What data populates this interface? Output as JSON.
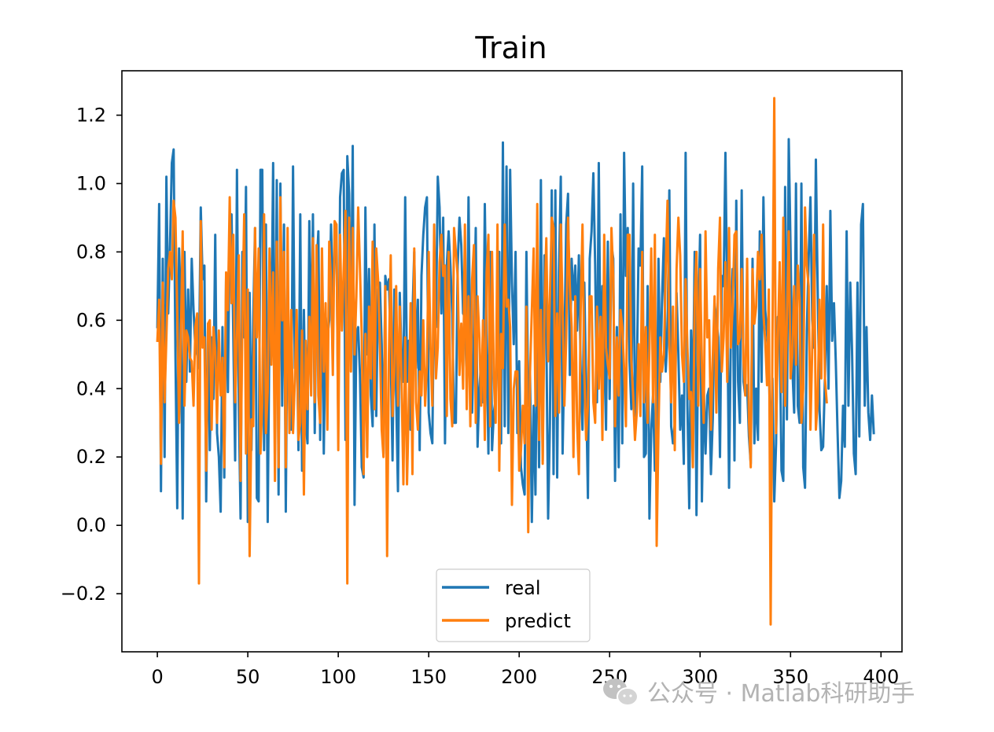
{
  "chart_data": {
    "type": "line",
    "title": "Train",
    "xlabel": "",
    "ylabel": "",
    "xlim": [
      -19.6,
      411.6
    ],
    "ylim": [
      -0.37,
      1.33
    ],
    "xticks": [
      0,
      50,
      100,
      150,
      200,
      250,
      300,
      350,
      400
    ],
    "xtick_labels": [
      "0",
      "50",
      "100",
      "150",
      "200",
      "250",
      "300",
      "350",
      "400"
    ],
    "yticks": [
      -0.2,
      0.0,
      0.2,
      0.4,
      0.6,
      0.8,
      1.0,
      1.2
    ],
    "ytick_labels": [
      "−0.2",
      "0.0",
      "0.2",
      "0.4",
      "0.6",
      "0.8",
      "1.0",
      "1.2"
    ],
    "grid": false,
    "legend_position": "lower center",
    "series": [
      {
        "name": "real",
        "color": "#1f77b4",
        "x_start": 0,
        "x_step": 1,
        "values": [
          0.58,
          0.94,
          0.1,
          0.78,
          0.2,
          1.02,
          0.62,
          0.82,
          1.06,
          1.1,
          0.5,
          0.05,
          0.81,
          0.63,
          0.02,
          0.8,
          0.42,
          0.69,
          0.45,
          0.78,
          0.63,
          0.52,
          0.5,
          0.46,
          0.93,
          0.72,
          0.76,
          0.07,
          0.59,
          0.22,
          0.55,
          0.37,
          0.85,
          0.27,
          0.2,
          0.04,
          0.58,
          0.14,
          0.73,
          0.39,
          0.88,
          0.91,
          0.55,
          0.19,
          1.04,
          0.36,
          0.02,
          0.8,
          0.55,
          0.99,
          0.01,
          0.68,
          0.22,
          0.6,
          0.87,
          0.08,
          0.07,
          1.04,
          1.04,
          0.22,
          0.88,
          0.01,
          0.6,
          0.55,
          1.06,
          0.22,
          1.01,
          0.09,
          1.0,
          0.35,
          0.88,
          0.04,
          0.74,
          0.32,
          0.28,
          1.05,
          0.46,
          0.59,
          0.22,
          0.91,
          0.16,
          0.63,
          0.3,
          0.24,
          0.89,
          0.5,
          0.91,
          0.27,
          0.75,
          0.86,
          0.25,
          0.74,
          0.21,
          0.61,
          0.55,
          0.6,
          0.88,
          0.66,
          0.79,
          0.85,
          0.3,
          0.96,
          1.03,
          1.04,
          0.25,
          1.08,
          0.97,
          0.58,
          1.11,
          0.06,
          0.56,
          0.58,
          0.44,
          0.17,
          0.14,
          0.93,
          0.5,
          0.75,
          0.38,
          0.29,
          0.88,
          0.32,
          0.69,
          0.71,
          0.53,
          0.21,
          0.73,
          0.69,
          0.72,
          0.5,
          0.19,
          0.69,
          0.38,
          0.1,
          0.68,
          0.49,
          0.42,
          0.96,
          0.42,
          0.54,
          0.28,
          0.61,
          0.8,
          0.46,
          0.66,
          0.22,
          0.73,
          0.85,
          0.93,
          0.96,
          0.33,
          0.27,
          0.24,
          0.73,
          0.58,
          1.02,
          0.93,
          0.62,
          0.9,
          0.24,
          0.76,
          0.86,
          0.76,
          0.62,
          0.3,
          0.3,
          0.76,
          0.9,
          0.82,
          0.62,
          0.61,
          0.42,
          0.96,
          0.47,
          0.33,
          0.57,
          0.87,
          0.23,
          0.4,
          0.48,
          0.36,
          0.94,
          0.56,
          0.21,
          0.8,
          0.22,
          0.33,
          0.37,
          0.57,
          0.8,
          0.24,
          1.12,
          0.29,
          1.05,
          0.27,
          1.04,
          0.71,
          0.53,
          0.8,
          0.27,
          0.48,
          0.17,
          0.12,
          0.09,
          0.8,
          0.35,
          0.44,
          0.01,
          0.35,
          0.09,
          0.66,
          0.17,
          1.01,
          0.19,
          0.79,
          0.57,
          0.02,
          0.3,
          0.98,
          0.15,
          0.98,
          0.14,
          0.74,
          1.02,
          0.21,
          0.51,
          0.88,
          0.97,
          0.44,
          0.78,
          0.66,
          0.76,
          0.57,
          0.79,
          0.45,
          0.28,
          0.71,
          0.4,
          0.08,
          0.78,
          0.86,
          1.03,
          0.76,
          0.36,
          1.06,
          0.45,
          0.7,
          0.52,
          0.28,
          0.83,
          0.37,
          0.82,
          0.78,
          0.13,
          0.58,
          0.17,
          0.91,
          0.24,
          1.09,
          0.73,
          0.87,
          0.48,
          0.34,
          1.0,
          0.32,
          0.43,
          0.81,
          0.76,
          1.05,
          0.2,
          0.21,
          0.7,
          0.02,
          0.28,
          0.38,
          0.16,
          0.2,
          0.78,
          0.42,
          0.67,
          0.84,
          0.45,
          0.56,
          0.98,
          0.29,
          0.24,
          0.3,
          0.68,
          0.5,
          0.28,
          0.38,
          0.18,
          1.09,
          0.35,
          0.05,
          0.57,
          0.35,
          0.8,
          0.03,
          0.6,
          0.85,
          0.07,
          0.41,
          0.21,
          0.38,
          0.4,
          0.15,
          0.31,
          0.65,
          0.6,
          0.55,
          0.2,
          0.73,
          0.7,
          1.09,
          0.65,
          0.11,
          0.57,
          0.75,
          0.19,
          0.95,
          0.42,
          0.3,
          0.98,
          0.42,
          0.38,
          0.41,
          0.26,
          0.18,
          0.78,
          0.24,
          0.4,
          0.25,
          0.86,
          0.42,
          0.96,
          0.63,
          0.56,
          0.49,
          0.18,
          0.43,
          0.07,
          0.24,
          0.61,
          0.58,
          0.16,
          0.13,
          0.99,
          0.31,
          1.13,
          0.81,
          0.46,
          0.33,
          1.0,
          0.35,
          0.3,
          1.0,
          0.17,
          0.11,
          0.57,
          0.78,
          0.96,
          0.6,
          0.52,
          1.07,
          0.69,
          0.34,
          0.22,
          0.23,
          0.43,
          0.7,
          0.4,
          0.92,
          0.54,
          0.65,
          0.48,
          0.27,
          0.08,
          0.13,
          0.35,
          0.23,
          0.86,
          0.35,
          0.71,
          0.51,
          0.21,
          0.15,
          0.71,
          0.26,
          0.88,
          0.94,
          0.35,
          0.58,
          0.33,
          0.25,
          0.38,
          0.27
        ]
      },
      {
        "name": "predict",
        "color": "#ff7f0e",
        "x_start": 0,
        "x_step": 1,
        "values": [
          0.54,
          0.66,
          0.18,
          0.71,
          0.36,
          0.55,
          0.75,
          0.8,
          0.72,
          0.95,
          0.9,
          0.62,
          0.3,
          0.55,
          0.86,
          0.35,
          0.57,
          0.55,
          0.49,
          0.48,
          0.35,
          0.58,
          0.62,
          -0.17,
          0.89,
          0.52,
          0.55,
          0.16,
          0.59,
          0.6,
          0.28,
          0.58,
          0.51,
          0.3,
          0.57,
          0.38,
          0.49,
          0.17,
          0.74,
          0.63,
          0.96,
          0.65,
          0.85,
          0.36,
          0.55,
          0.79,
          0.13,
          0.6,
          0.91,
          0.21,
          0.69,
          -0.09,
          0.31,
          0.29,
          0.87,
          0.55,
          0.81,
          0.21,
          0.36,
          0.91,
          0.27,
          0.39,
          0.81,
          0.47,
          0.74,
          0.13,
          0.83,
          0.17,
          0.96,
          0.6,
          0.8,
          0.17,
          0.87,
          0.27,
          0.63,
          0.27,
          0.42,
          0.63,
          0.25,
          0.3,
          0.57,
          0.09,
          0.54,
          0.34,
          0.61,
          0.38,
          0.84,
          0.36,
          0.82,
          0.38,
          0.3,
          0.81,
          0.45,
          0.65,
          0.28,
          0.83,
          0.72,
          0.44,
          0.89,
          0.88,
          0.22,
          0.85,
          0.57,
          0.75,
          0.92,
          -0.17,
          0.9,
          0.45,
          0.87,
          0.5,
          0.67,
          0.93,
          0.75,
          0.55,
          0.15,
          0.56,
          0.2,
          0.64,
          0.43,
          0.83,
          0.34,
          0.81,
          0.72,
          0.53,
          0.28,
          0.2,
          0.7,
          -0.09,
          0.5,
          0.79,
          0.32,
          0.45,
          0.7,
          0.35,
          0.64,
          0.42,
          0.12,
          0.55,
          0.12,
          0.36,
          0.65,
          0.15,
          0.81,
          0.36,
          0.28,
          0.45,
          0.38,
          0.6,
          0.35,
          0.47,
          0.8,
          0.52,
          0.35,
          0.88,
          0.43,
          0.52,
          0.77,
          0.85,
          0.73,
          0.76,
          0.32,
          0.8,
          0.37,
          0.29,
          0.87,
          0.8,
          0.73,
          0.44,
          0.59,
          0.4,
          0.88,
          0.34,
          0.67,
          0.29,
          0.72,
          0.82,
          0.3,
          0.67,
          0.55,
          0.35,
          0.6,
          0.25,
          0.74,
          0.85,
          0.29,
          0.8,
          0.43,
          0.3,
          0.88,
          0.16,
          0.56,
          0.46,
          0.88,
          0.64,
          0.66,
          0.58,
          0.06,
          0.4,
          0.45,
          0.45,
          0.16,
          0.22,
          0.35,
          0.24,
          0.64,
          -0.02,
          0.45,
          0.63,
          0.81,
          0.35,
          0.94,
          0.25,
          0.63,
          0.18,
          0.64,
          0.84,
          0.48,
          0.67,
          0.9,
          0.87,
          0.32,
          0.62,
          0.33,
          0.88,
          0.63,
          0.35,
          0.55,
          0.9,
          0.7,
          0.58,
          0.2,
          0.67,
          0.3,
          0.15,
          0.63,
          0.88,
          0.45,
          0.25,
          0.35,
          0.67,
          0.67,
          0.36,
          0.3,
          0.64,
          0.4,
          0.61,
          0.25,
          0.85,
          0.52,
          0.47,
          0.43,
          0.87,
          0.73,
          0.29,
          0.55,
          0.38,
          0.63,
          0.58,
          0.46,
          0.29,
          0.85,
          0.85,
          0.48,
          0.38,
          0.25,
          0.33,
          0.53,
          0.32,
          0.8,
          0.36,
          0.58,
          0.3,
          0.52,
          0.81,
          0.36,
          0.85,
          -0.06,
          0.28,
          0.55,
          0.45,
          0.5,
          0.75,
          0.95,
          0.53,
          0.36,
          0.64,
          0.22,
          0.75,
          0.9,
          0.79,
          0.5,
          0.42,
          0.72,
          0.52,
          0.37,
          0.39,
          0.17,
          0.66,
          0.8,
          0.35,
          0.75,
          0.47,
          0.3,
          0.86,
          0.55,
          0.6,
          0.28,
          0.49,
          0.67,
          0.33,
          0.75,
          0.9,
          0.45,
          0.55,
          0.77,
          0.42,
          0.87,
          0.52,
          0.64,
          0.85,
          0.86,
          0.53,
          0.55,
          0.75,
          0.48,
          0.38,
          0.78,
          0.31,
          0.17,
          0.75,
          0.59,
          0.64,
          0.8,
          0.72,
          0.85,
          0.62,
          0.54,
          0.41,
          0.69,
          -0.29,
          0.55,
          1.25,
          0.27,
          0.54,
          0.77,
          0.39,
          0.9,
          0.35,
          0.61,
          0.86,
          0.43,
          0.5,
          0.7,
          0.47,
          0.76,
          0.66,
          0.3,
          0.4,
          0.93,
          0.76,
          0.7,
          0.28,
          0.52,
          0.85,
          0.28,
          0.36,
          0.66,
          0.43,
          0.88,
          0.43,
          0.36
        ]
      }
    ]
  },
  "watermark": {
    "text": "公众号 · Matlab科研助手",
    "icon": "wechat-icon"
  }
}
